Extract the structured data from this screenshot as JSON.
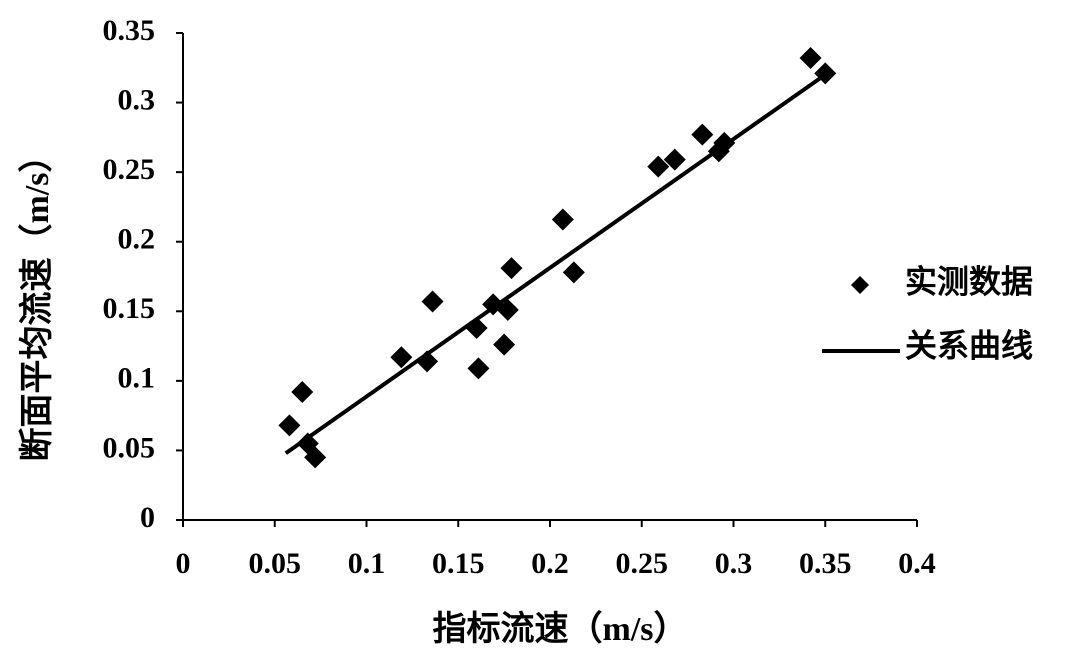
{
  "chart_data": {
    "type": "scatter",
    "x_label": "指标流速（m/s）",
    "y_label": "断面平均流速（m/s）",
    "xlim": [
      0,
      0.4
    ],
    "xticks": [
      0,
      0.05,
      0.1,
      0.15,
      0.2,
      0.25,
      0.3,
      0.35,
      0.4
    ],
    "ylim": [
      0,
      0.35
    ],
    "yticks": [
      0,
      0.05,
      0.1,
      0.15,
      0.2,
      0.25,
      0.3,
      0.35
    ],
    "grid": false,
    "legend": "right",
    "series": [
      {
        "name": "实测数据",
        "type": "scatter",
        "color": "#000000",
        "x": [
          0.058,
          0.065,
          0.068,
          0.072,
          0.119,
          0.133,
          0.136,
          0.16,
          0.161,
          0.169,
          0.175,
          0.177,
          0.179,
          0.207,
          0.213,
          0.259,
          0.268,
          0.283,
          0.292,
          0.295,
          0.342,
          0.35
        ],
        "values": [
          0.068,
          0.092,
          0.055,
          0.045,
          0.117,
          0.114,
          0.157,
          0.138,
          0.109,
          0.155,
          0.126,
          0.151,
          0.181,
          0.216,
          0.178,
          0.254,
          0.259,
          0.277,
          0.265,
          0.271,
          0.332,
          0.321
        ]
      },
      {
        "name": "关系曲线",
        "type": "line",
        "color": "#000000",
        "x": [
          0.056,
          0.351
        ],
        "values": [
          0.048,
          0.321
        ]
      }
    ]
  }
}
